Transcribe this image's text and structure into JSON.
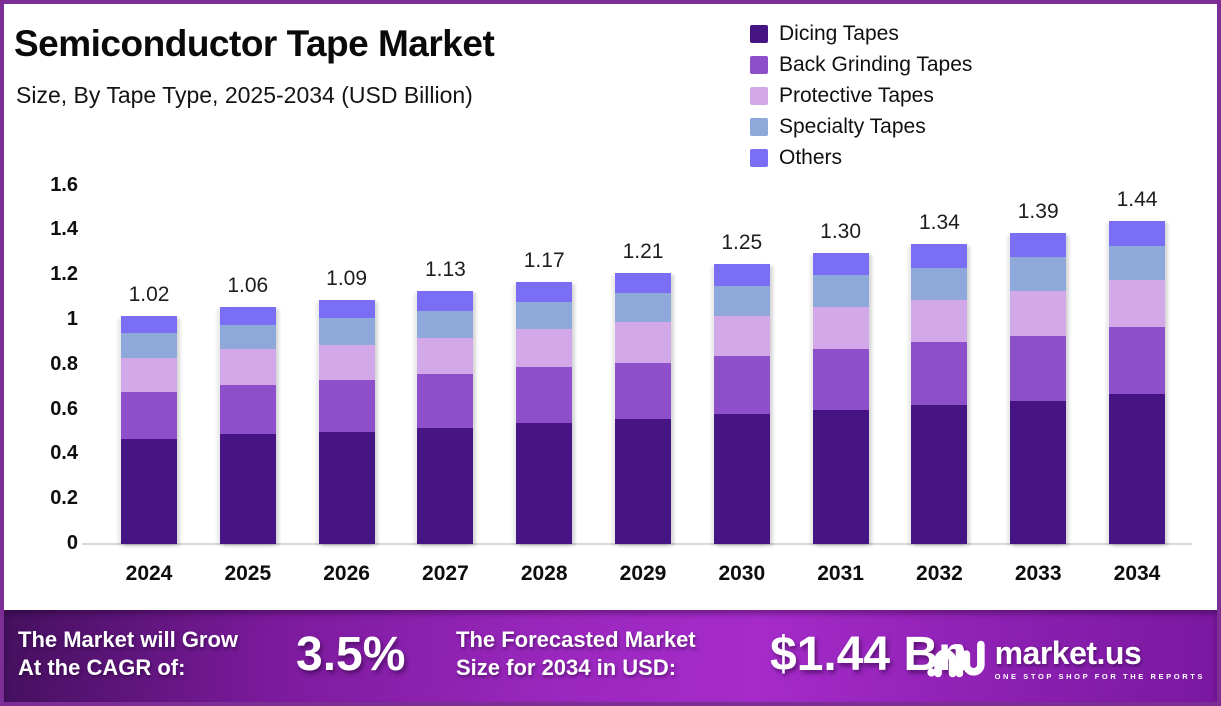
{
  "theme": {
    "border_color": "#7c2d96",
    "footer_gradient": [
      "#45105e",
      "#9a27bd",
      "#a62bca",
      "#7a18a0"
    ],
    "text_color": "#0a0a0a"
  },
  "header": {
    "title": "Semiconductor Tape Market",
    "subtitle": "Size, By Tape Type, 2025-2034 (USD Billion)"
  },
  "chart_data": {
    "type": "bar",
    "stacked": true,
    "title": "Semiconductor Tape Market",
    "subtitle": "Size, By Tape Type, 2025-2034 (USD Billion)",
    "xlabel": "",
    "ylabel": "",
    "ylim": [
      0,
      1.6
    ],
    "grid": false,
    "legend_position": "top-right",
    "categories": [
      "2024",
      "2025",
      "2026",
      "2027",
      "2028",
      "2029",
      "2030",
      "2031",
      "2032",
      "2033",
      "2034"
    ],
    "y_ticks": [
      "1.6",
      "1.4",
      "1.2",
      "1",
      "0.8",
      "0.6",
      "0.4",
      "0.2",
      "0"
    ],
    "series": [
      {
        "name": "Dicing Tapes",
        "color": "#471583",
        "values": [
          0.47,
          0.49,
          0.5,
          0.52,
          0.54,
          0.56,
          0.58,
          0.6,
          0.62,
          0.64,
          0.67
        ]
      },
      {
        "name": "Back Grinding Tapes",
        "color": "#8d4fca",
        "values": [
          0.21,
          0.22,
          0.23,
          0.24,
          0.25,
          0.25,
          0.26,
          0.27,
          0.28,
          0.29,
          0.3
        ]
      },
      {
        "name": "Protective Tapes",
        "color": "#d2a8e9",
        "values": [
          0.15,
          0.16,
          0.16,
          0.16,
          0.17,
          0.18,
          0.18,
          0.19,
          0.19,
          0.2,
          0.21
        ]
      },
      {
        "name": "Specialty Tapes",
        "color": "#8ea8da",
        "values": [
          0.11,
          0.11,
          0.12,
          0.12,
          0.12,
          0.13,
          0.13,
          0.14,
          0.14,
          0.15,
          0.15
        ]
      },
      {
        "name": "Others",
        "color": "#7a6ef5",
        "values": [
          0.08,
          0.08,
          0.08,
          0.09,
          0.09,
          0.09,
          0.1,
          0.1,
          0.11,
          0.11,
          0.11
        ]
      }
    ],
    "totals": [
      1.02,
      1.06,
      1.09,
      1.13,
      1.17,
      1.21,
      1.25,
      1.3,
      1.34,
      1.39,
      1.44
    ],
    "total_labels": [
      "1.02",
      "1.06",
      "1.09",
      "1.13",
      "1.17",
      "1.21",
      "1.25",
      "1.30",
      "1.34",
      "1.39",
      "1.44"
    ]
  },
  "footer": {
    "cagr_line1": "The Market will Grow",
    "cagr_line2": "At the CAGR of:",
    "cagr_value": "3.5%",
    "forecast_line1": "The Forecasted Market",
    "forecast_line2": "Size for 2034 in USD:",
    "forecast_value": "$1.44 Bn",
    "brand_name": "market.us",
    "brand_tagline": "ONE STOP SHOP FOR THE REPORTS"
  }
}
